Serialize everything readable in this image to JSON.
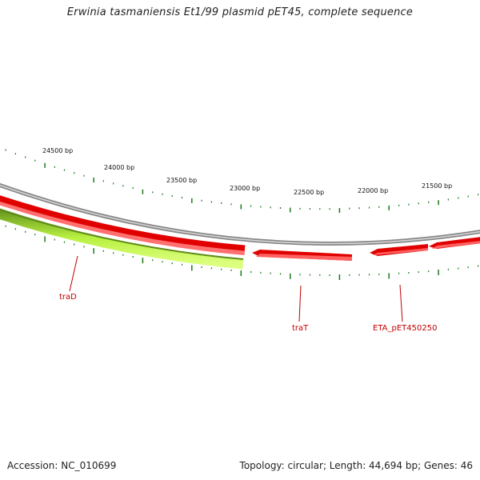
{
  "title": "Erwinia tasmaniensis Et1/99 plasmid pET45, complete sequence",
  "accession": "Accession: NC_010699",
  "topology": "Topology: circular; Length: 44,694 bp; Genes: 46",
  "colors": {
    "backbone": "#7a7a7a",
    "forward_gene": "#e00000",
    "reverse_gene": "#ff2020",
    "selected_gene": "#99ee22",
    "tick": "#1a7a1a",
    "label": "#c00000"
  },
  "scale": {
    "labels": [
      "24500 bp",
      "24000 bp",
      "23500 bp",
      "23000 bp",
      "22500 bp",
      "22000 bp",
      "21500 bp"
    ]
  },
  "genes": [
    {
      "name": "traD",
      "strand": "outer-green"
    },
    {
      "name": "traT",
      "strand": "inner"
    },
    {
      "name": "ETA_pET450250",
      "strand": "inner"
    }
  ]
}
